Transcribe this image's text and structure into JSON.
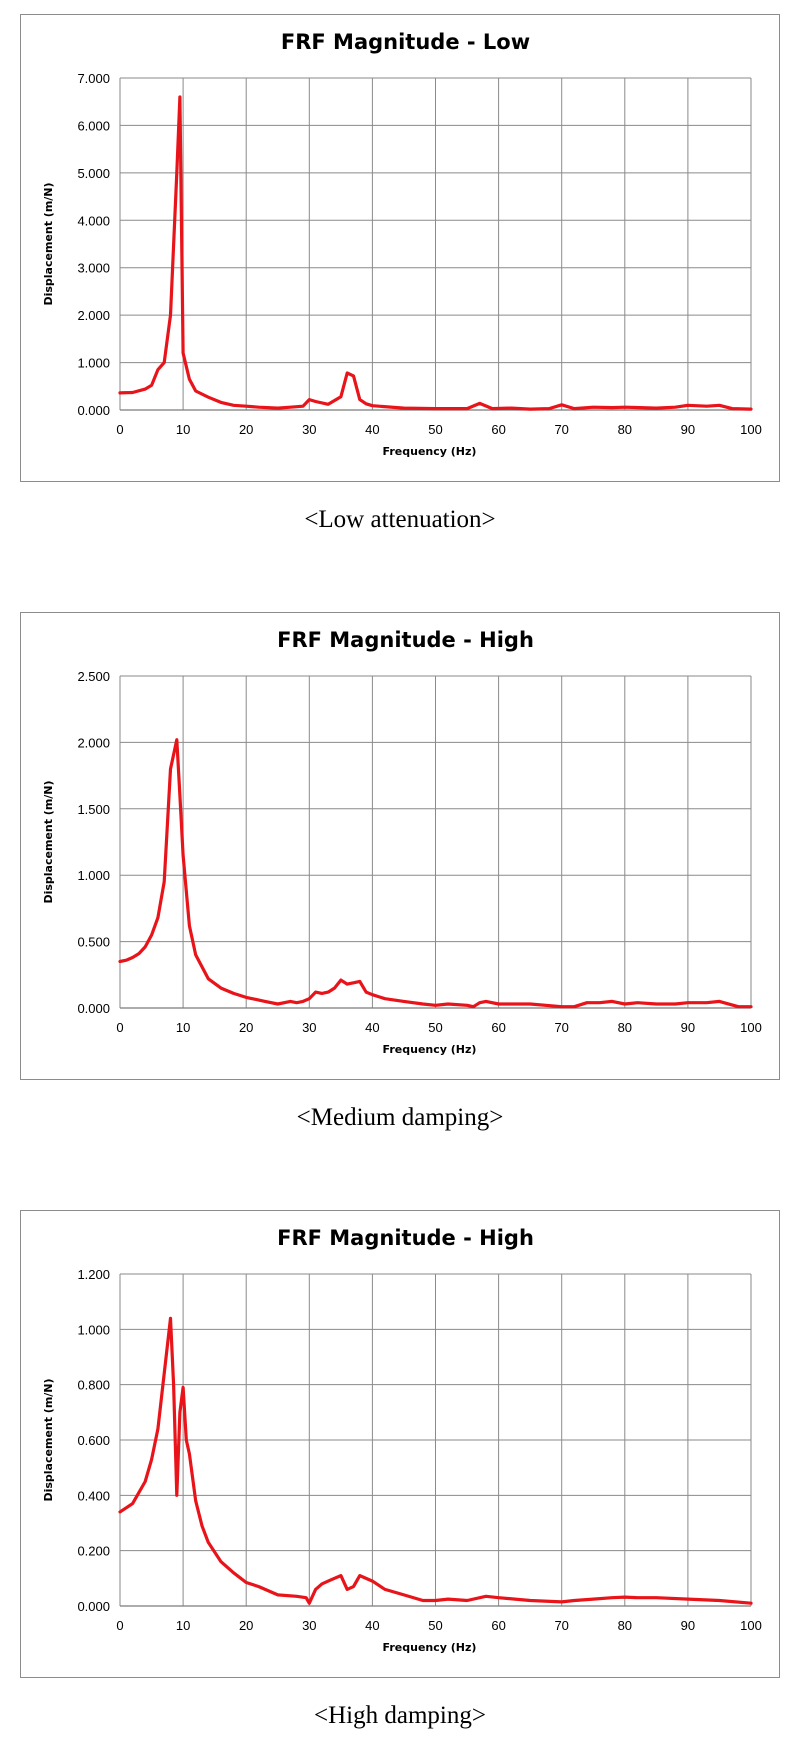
{
  "chart_data": [
    {
      "type": "line",
      "title": "FRF Magnitude - Low",
      "xlabel": "Frequency (Hz)",
      "ylabel": "Displacement (m/N)",
      "xlim": [
        0,
        100
      ],
      "ylim": [
        0,
        7
      ],
      "xticks": [
        "0",
        "10",
        "20",
        "30",
        "40",
        "50",
        "60",
        "70",
        "80",
        "90",
        "100"
      ],
      "yticks": [
        "0.000",
        "1.000",
        "2.000",
        "3.000",
        "4.000",
        "5.000",
        "6.000",
        "7.000"
      ],
      "grid": true,
      "color": "#e8141a",
      "series": [
        {
          "x": [
            0,
            2,
            4,
            5,
            6,
            7,
            8,
            9,
            9.5,
            10,
            11,
            12,
            14,
            16,
            18,
            20,
            22,
            25,
            27,
            29,
            30,
            31,
            33,
            35,
            36,
            37,
            38,
            39,
            40,
            45,
            50,
            55,
            57,
            59,
            62,
            65,
            68,
            70,
            72,
            75,
            78,
            80,
            85,
            88,
            90,
            93,
            95,
            97,
            100
          ],
          "values": [
            0.36,
            0.37,
            0.44,
            0.52,
            0.85,
            1.0,
            2.0,
            5.0,
            6.6,
            1.2,
            0.65,
            0.4,
            0.27,
            0.16,
            0.1,
            0.08,
            0.06,
            0.04,
            0.06,
            0.08,
            0.22,
            0.18,
            0.12,
            0.28,
            0.78,
            0.72,
            0.22,
            0.13,
            0.09,
            0.04,
            0.03,
            0.03,
            0.14,
            0.03,
            0.04,
            0.02,
            0.03,
            0.11,
            0.03,
            0.06,
            0.05,
            0.06,
            0.04,
            0.06,
            0.1,
            0.08,
            0.1,
            0.03,
            0.02
          ]
        }
      ],
      "caption": "<Low attenuation>"
    },
    {
      "type": "line",
      "title": "FRF Magnitude - High",
      "xlabel": "Frequency (Hz)",
      "ylabel": "Displacement (m/N)",
      "xlim": [
        0,
        100
      ],
      "ylim": [
        0,
        2.5
      ],
      "xticks": [
        "0",
        "10",
        "20",
        "30",
        "40",
        "50",
        "60",
        "70",
        "80",
        "90",
        "100"
      ],
      "yticks": [
        "0.000",
        "0.500",
        "1.000",
        "1.500",
        "2.000",
        "2.500"
      ],
      "grid": true,
      "color": "#e8141a",
      "series": [
        {
          "x": [
            0,
            1,
            2,
            3,
            4,
            5,
            6,
            7,
            8,
            9,
            9.5,
            10,
            11,
            12,
            14,
            16,
            18,
            20,
            23,
            25,
            27,
            28,
            29,
            30,
            31,
            32,
            33,
            34,
            35,
            36,
            37,
            38,
            39,
            40,
            42,
            45,
            48,
            50,
            52,
            55,
            56,
            57,
            58,
            60,
            65,
            70,
            72,
            74,
            76,
            78,
            80,
            82,
            85,
            88,
            90,
            93,
            95,
            98,
            100
          ],
          "values": [
            0.35,
            0.36,
            0.38,
            0.41,
            0.46,
            0.55,
            0.68,
            0.95,
            1.8,
            2.02,
            1.6,
            1.15,
            0.62,
            0.4,
            0.22,
            0.15,
            0.11,
            0.08,
            0.05,
            0.03,
            0.05,
            0.04,
            0.05,
            0.07,
            0.12,
            0.11,
            0.12,
            0.15,
            0.21,
            0.18,
            0.19,
            0.2,
            0.12,
            0.1,
            0.07,
            0.05,
            0.03,
            0.02,
            0.03,
            0.02,
            0.01,
            0.04,
            0.05,
            0.03,
            0.03,
            0.01,
            0.01,
            0.04,
            0.04,
            0.05,
            0.03,
            0.04,
            0.03,
            0.03,
            0.04,
            0.04,
            0.05,
            0.01,
            0.01
          ]
        }
      ],
      "caption": "<Medium damping>"
    },
    {
      "type": "line",
      "title": "FRF Magnitude - High",
      "xlabel": "Frequency (Hz)",
      "ylabel": "Displacement (m/N)",
      "xlim": [
        0,
        100
      ],
      "ylim": [
        0,
        1.2
      ],
      "xticks": [
        "0",
        "10",
        "20",
        "30",
        "40",
        "50",
        "60",
        "70",
        "80",
        "90",
        "100"
      ],
      "yticks": [
        "0.000",
        "0.200",
        "0.400",
        "0.600",
        "0.800",
        "1.000",
        "1.200"
      ],
      "grid": true,
      "color": "#e8141a",
      "series": [
        {
          "x": [
            0,
            2,
            4,
            5,
            6,
            7,
            8,
            8.5,
            9,
            9.5,
            10,
            10.5,
            11,
            12,
            13,
            14,
            16,
            18,
            20,
            22,
            25,
            28,
            29.5,
            30,
            31,
            32,
            33,
            34,
            35,
            36,
            37,
            38,
            40,
            42,
            45,
            48,
            50,
            52,
            55,
            58,
            60,
            65,
            70,
            72,
            75,
            78,
            80,
            82,
            85,
            90,
            95,
            100
          ],
          "values": [
            0.34,
            0.37,
            0.45,
            0.53,
            0.64,
            0.84,
            1.04,
            0.8,
            0.4,
            0.7,
            0.79,
            0.6,
            0.55,
            0.38,
            0.29,
            0.23,
            0.16,
            0.12,
            0.085,
            0.07,
            0.04,
            0.035,
            0.03,
            0.01,
            0.06,
            0.08,
            0.09,
            0.1,
            0.11,
            0.06,
            0.07,
            0.11,
            0.09,
            0.06,
            0.04,
            0.02,
            0.02,
            0.025,
            0.02,
            0.035,
            0.03,
            0.02,
            0.015,
            0.02,
            0.025,
            0.03,
            0.032,
            0.03,
            0.03,
            0.025,
            0.02,
            0.01
          ]
        }
      ],
      "caption": "<High damping>"
    }
  ]
}
